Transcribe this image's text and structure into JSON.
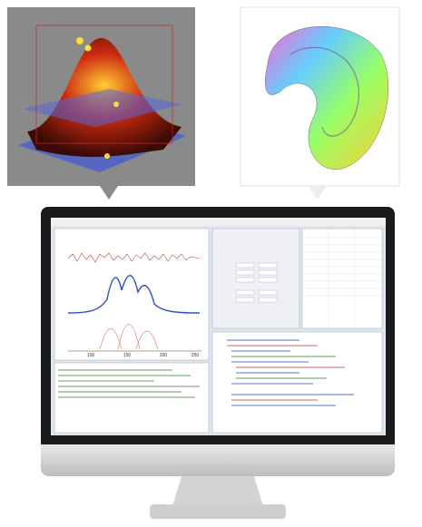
{
  "screen": {
    "plot_x_ticks": [
      "100",
      "150",
      "200",
      "250"
    ]
  }
}
